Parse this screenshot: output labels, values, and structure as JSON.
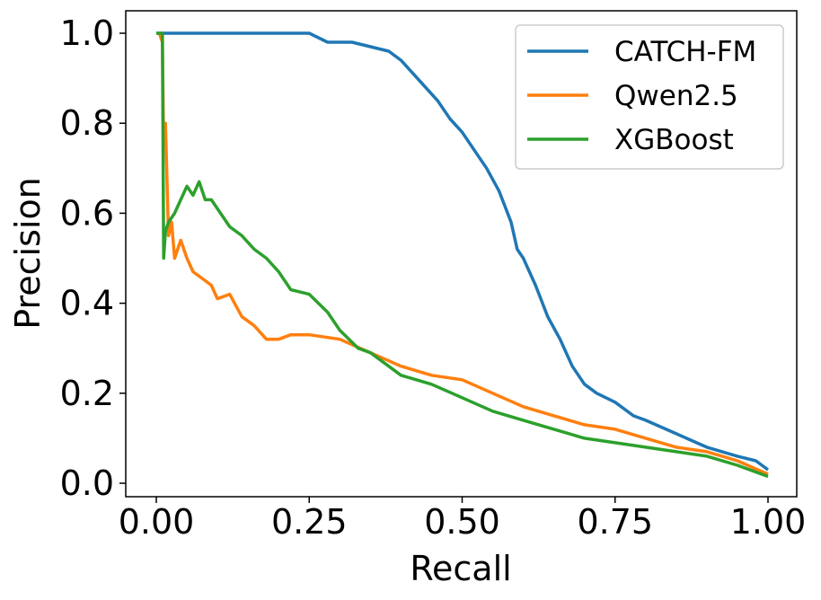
{
  "chart_data": {
    "type": "line",
    "xlabel": "Recall",
    "ylabel": "Precision",
    "xlim": [
      0,
      1
    ],
    "ylim": [
      0,
      1
    ],
    "xticks": [
      "0.00",
      "0.25",
      "0.50",
      "0.75",
      "1.00"
    ],
    "yticks": [
      "0.0",
      "0.2",
      "0.4",
      "0.6",
      "0.8",
      "1.0"
    ],
    "grid": false,
    "legend_position": "top-right",
    "series": [
      {
        "name": "CATCH-FM",
        "color": "#1f77b4",
        "x": [
          0.0,
          0.1,
          0.2,
          0.25,
          0.28,
          0.32,
          0.35,
          0.38,
          0.4,
          0.42,
          0.44,
          0.46,
          0.48,
          0.5,
          0.52,
          0.54,
          0.56,
          0.58,
          0.59,
          0.6,
          0.62,
          0.64,
          0.66,
          0.68,
          0.7,
          0.72,
          0.75,
          0.78,
          0.8,
          0.85,
          0.9,
          0.95,
          0.98,
          1.0
        ],
        "y": [
          1.0,
          1.0,
          1.0,
          1.0,
          0.98,
          0.98,
          0.97,
          0.96,
          0.94,
          0.91,
          0.88,
          0.85,
          0.81,
          0.78,
          0.74,
          0.7,
          0.65,
          0.58,
          0.52,
          0.5,
          0.44,
          0.37,
          0.32,
          0.26,
          0.22,
          0.2,
          0.18,
          0.15,
          0.14,
          0.11,
          0.08,
          0.06,
          0.05,
          0.03
        ]
      },
      {
        "name": "Qwen2.5",
        "color": "#ff7f0e",
        "x": [
          0.005,
          0.01,
          0.012,
          0.015,
          0.02,
          0.025,
          0.03,
          0.035,
          0.04,
          0.05,
          0.06,
          0.07,
          0.08,
          0.09,
          0.1,
          0.12,
          0.14,
          0.16,
          0.18,
          0.2,
          0.22,
          0.25,
          0.3,
          0.35,
          0.4,
          0.45,
          0.5,
          0.55,
          0.6,
          0.65,
          0.7,
          0.75,
          0.8,
          0.85,
          0.9,
          0.95,
          1.0
        ],
        "y": [
          1.0,
          0.98,
          0.75,
          0.8,
          0.55,
          0.58,
          0.5,
          0.52,
          0.54,
          0.5,
          0.47,
          0.46,
          0.45,
          0.44,
          0.41,
          0.42,
          0.37,
          0.35,
          0.32,
          0.32,
          0.33,
          0.33,
          0.32,
          0.29,
          0.26,
          0.24,
          0.23,
          0.2,
          0.17,
          0.15,
          0.13,
          0.12,
          0.1,
          0.08,
          0.07,
          0.05,
          0.02
        ]
      },
      {
        "name": "XGBoost",
        "color": "#2ca02c",
        "x": [
          0.0,
          0.01,
          0.012,
          0.015,
          0.02,
          0.03,
          0.04,
          0.05,
          0.06,
          0.07,
          0.08,
          0.09,
          0.1,
          0.12,
          0.14,
          0.16,
          0.18,
          0.2,
          0.22,
          0.25,
          0.28,
          0.3,
          0.33,
          0.35,
          0.4,
          0.45,
          0.5,
          0.55,
          0.6,
          0.65,
          0.7,
          0.75,
          0.8,
          0.85,
          0.9,
          0.95,
          1.0
        ],
        "y": [
          1.0,
          1.0,
          0.5,
          0.56,
          0.58,
          0.6,
          0.63,
          0.66,
          0.64,
          0.67,
          0.63,
          0.63,
          0.61,
          0.57,
          0.55,
          0.52,
          0.5,
          0.47,
          0.43,
          0.42,
          0.38,
          0.34,
          0.3,
          0.29,
          0.24,
          0.22,
          0.19,
          0.16,
          0.14,
          0.12,
          0.1,
          0.09,
          0.08,
          0.07,
          0.06,
          0.04,
          0.015
        ]
      }
    ]
  }
}
